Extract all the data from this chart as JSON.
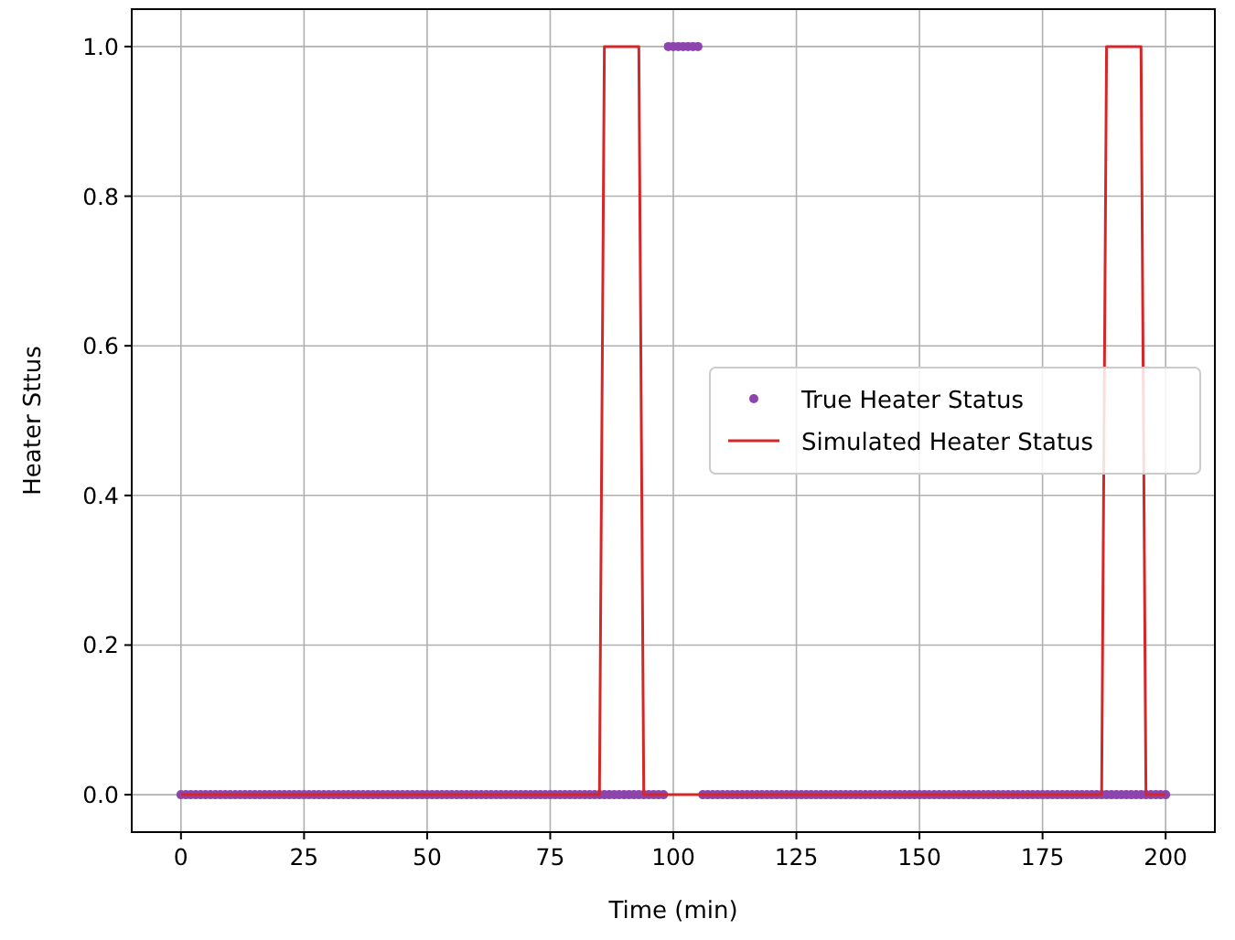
{
  "chart_data": {
    "type": "line",
    "xlabel": "Time (min)",
    "ylabel": "Heater Sttus",
    "x": [
      0,
      1,
      2,
      3,
      4,
      5,
      6,
      7,
      8,
      9,
      10,
      11,
      12,
      13,
      14,
      15,
      16,
      17,
      18,
      19,
      20,
      21,
      22,
      23,
      24,
      25,
      26,
      27,
      28,
      29,
      30,
      31,
      32,
      33,
      34,
      35,
      36,
      37,
      38,
      39,
      40,
      41,
      42,
      43,
      44,
      45,
      46,
      47,
      48,
      49,
      50,
      51,
      52,
      53,
      54,
      55,
      56,
      57,
      58,
      59,
      60,
      61,
      62,
      63,
      64,
      65,
      66,
      67,
      68,
      69,
      70,
      71,
      72,
      73,
      74,
      75,
      76,
      77,
      78,
      79,
      80,
      81,
      82,
      83,
      84,
      85,
      86,
      87,
      88,
      89,
      90,
      91,
      92,
      93,
      94,
      95,
      96,
      97,
      98,
      99,
      100,
      101,
      102,
      103,
      104,
      105,
      106,
      107,
      108,
      109,
      110,
      111,
      112,
      113,
      114,
      115,
      116,
      117,
      118,
      119,
      120,
      121,
      122,
      123,
      124,
      125,
      126,
      127,
      128,
      129,
      130,
      131,
      132,
      133,
      134,
      135,
      136,
      137,
      138,
      139,
      140,
      141,
      142,
      143,
      144,
      145,
      146,
      147,
      148,
      149,
      150,
      151,
      152,
      153,
      154,
      155,
      156,
      157,
      158,
      159,
      160,
      161,
      162,
      163,
      164,
      165,
      166,
      167,
      168,
      169,
      170,
      171,
      172,
      173,
      174,
      175,
      176,
      177,
      178,
      179,
      180,
      181,
      182,
      183,
      184,
      185,
      186,
      187,
      188,
      189,
      190,
      191,
      192,
      193,
      194,
      195,
      196,
      197,
      198,
      199,
      200
    ],
    "series": [
      {
        "name": "True Heater Status",
        "type": "scatter",
        "marker": "circle",
        "color": "#8e44ad",
        "values": [
          0,
          0,
          0,
          0,
          0,
          0,
          0,
          0,
          0,
          0,
          0,
          0,
          0,
          0,
          0,
          0,
          0,
          0,
          0,
          0,
          0,
          0,
          0,
          0,
          0,
          0,
          0,
          0,
          0,
          0,
          0,
          0,
          0,
          0,
          0,
          0,
          0,
          0,
          0,
          0,
          0,
          0,
          0,
          0,
          0,
          0,
          0,
          0,
          0,
          0,
          0,
          0,
          0,
          0,
          0,
          0,
          0,
          0,
          0,
          0,
          0,
          0,
          0,
          0,
          0,
          0,
          0,
          0,
          0,
          0,
          0,
          0,
          0,
          0,
          0,
          0,
          0,
          0,
          0,
          0,
          0,
          0,
          0,
          0,
          0,
          0,
          0,
          0,
          0,
          0,
          0,
          0,
          0,
          0,
          0,
          0,
          0,
          0,
          0,
          1,
          1,
          1,
          1,
          1,
          1,
          1,
          0,
          0,
          0,
          0,
          0,
          0,
          0,
          0,
          0,
          0,
          0,
          0,
          0,
          0,
          0,
          0,
          0,
          0,
          0,
          0,
          0,
          0,
          0,
          0,
          0,
          0,
          0,
          0,
          0,
          0,
          0,
          0,
          0,
          0,
          0,
          0,
          0,
          0,
          0,
          0,
          0,
          0,
          0,
          0,
          0,
          0,
          0,
          0,
          0,
          0,
          0,
          0,
          0,
          0,
          0,
          0,
          0,
          0,
          0,
          0,
          0,
          0,
          0,
          0,
          0,
          0,
          0,
          0,
          0,
          0,
          0,
          0,
          0,
          0,
          0,
          0,
          0,
          0,
          0,
          0,
          0,
          0,
          0,
          0,
          0,
          0,
          0,
          0,
          0,
          0,
          0,
          0,
          0,
          0,
          0
        ]
      },
      {
        "name": "Simulated Heater Status",
        "color": "#d62728",
        "values": [
          0,
          0,
          0,
          0,
          0,
          0,
          0,
          0,
          0,
          0,
          0,
          0,
          0,
          0,
          0,
          0,
          0,
          0,
          0,
          0,
          0,
          0,
          0,
          0,
          0,
          0,
          0,
          0,
          0,
          0,
          0,
          0,
          0,
          0,
          0,
          0,
          0,
          0,
          0,
          0,
          0,
          0,
          0,
          0,
          0,
          0,
          0,
          0,
          0,
          0,
          0,
          0,
          0,
          0,
          0,
          0,
          0,
          0,
          0,
          0,
          0,
          0,
          0,
          0,
          0,
          0,
          0,
          0,
          0,
          0,
          0,
          0,
          0,
          0,
          0,
          0,
          0,
          0,
          0,
          0,
          0,
          0,
          0,
          0,
          0,
          0,
          1,
          1,
          1,
          1,
          1,
          1,
          1,
          1,
          0,
          0,
          0,
          0,
          0,
          0,
          0,
          0,
          0,
          0,
          0,
          0,
          0,
          0,
          0,
          0,
          0,
          0,
          0,
          0,
          0,
          0,
          0,
          0,
          0,
          0,
          0,
          0,
          0,
          0,
          0,
          0,
          0,
          0,
          0,
          0,
          0,
          0,
          0,
          0,
          0,
          0,
          0,
          0,
          0,
          0,
          0,
          0,
          0,
          0,
          0,
          0,
          0,
          0,
          0,
          0,
          0,
          0,
          0,
          0,
          0,
          0,
          0,
          0,
          0,
          0,
          0,
          0,
          0,
          0,
          0,
          0,
          0,
          0,
          0,
          0,
          0,
          0,
          0,
          0,
          0,
          0,
          0,
          0,
          0,
          0,
          0,
          0,
          0,
          0,
          0,
          0,
          0,
          0,
          1,
          1,
          1,
          1,
          1,
          1,
          1,
          1,
          0,
          0,
          0,
          0,
          0
        ]
      }
    ],
    "xlim": [
      -10,
      210
    ],
    "xticks": [
      0,
      25,
      50,
      75,
      100,
      125,
      150,
      175,
      200
    ],
    "ylim": [
      -0.05,
      1.05
    ],
    "yticks": [
      {
        "value": 0,
        "label": "0.0"
      },
      {
        "value": 0.2,
        "label": "0.2"
      },
      {
        "value": 0.4,
        "label": "0.4"
      },
      {
        "value": 0.6,
        "label": "0.6"
      },
      {
        "value": 0.8,
        "label": "0.8"
      },
      {
        "value": 1,
        "label": "1.0"
      }
    ],
    "grid": true,
    "legend": "center right"
  }
}
